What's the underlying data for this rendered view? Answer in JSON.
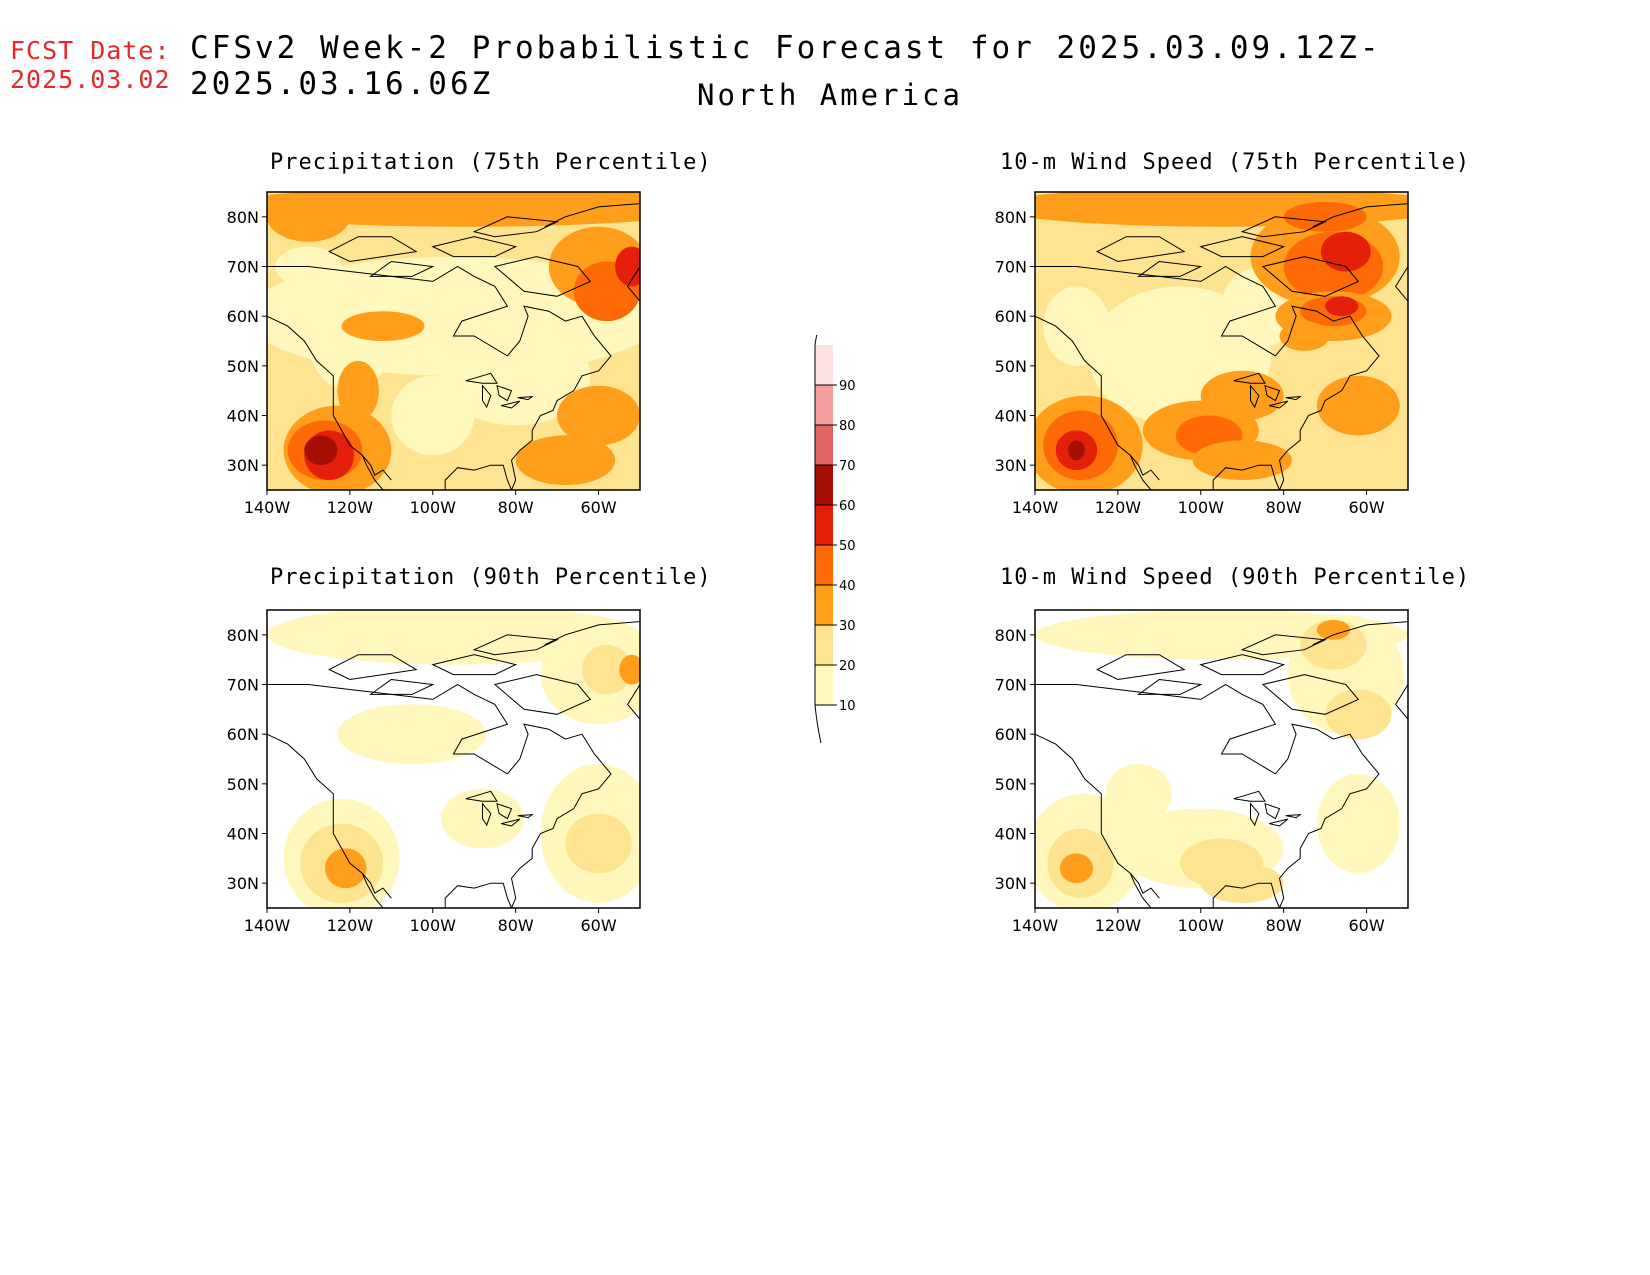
{
  "header": {
    "fcst_label": "FCST Date:",
    "fcst_date": "2025.03.02",
    "title": "CFSv2 Week-2 Probabilistic Forecast for 2025.03.09.12Z-2025.03.16.06Z",
    "region": "North America"
  },
  "panels": [
    {
      "title": "Precipitation (75th Percentile)"
    },
    {
      "title": "10-m Wind Speed (75th Percentile)"
    },
    {
      "title": "Precipitation (90th Percentile)"
    },
    {
      "title": "10-m Wind Speed (90th Percentile)"
    }
  ],
  "axes": {
    "lat_ticks": [
      "30N",
      "40N",
      "50N",
      "60N",
      "70N",
      "80N"
    ],
    "lon_ticks": [
      "140W",
      "120W",
      "100W",
      "80W",
      "60W"
    ]
  },
  "colorbar": {
    "levels": [
      "10",
      "20",
      "30",
      "40",
      "50",
      "60",
      "70",
      "80",
      "90"
    ],
    "colors": [
      "#fff7bc",
      "#fee391",
      "#fe9e1a",
      "#fd6a07",
      "#e5200a",
      "#a50f05",
      "#e06464",
      "#f4a0a0",
      "#fde0e0"
    ]
  },
  "fill_colors": {
    "c10": "#fff7bc",
    "c20": "#fee391",
    "c30": "#fe9e1a",
    "c40": "#fd6a07",
    "c50": "#e5200a",
    "c60": "#a50f05"
  }
}
